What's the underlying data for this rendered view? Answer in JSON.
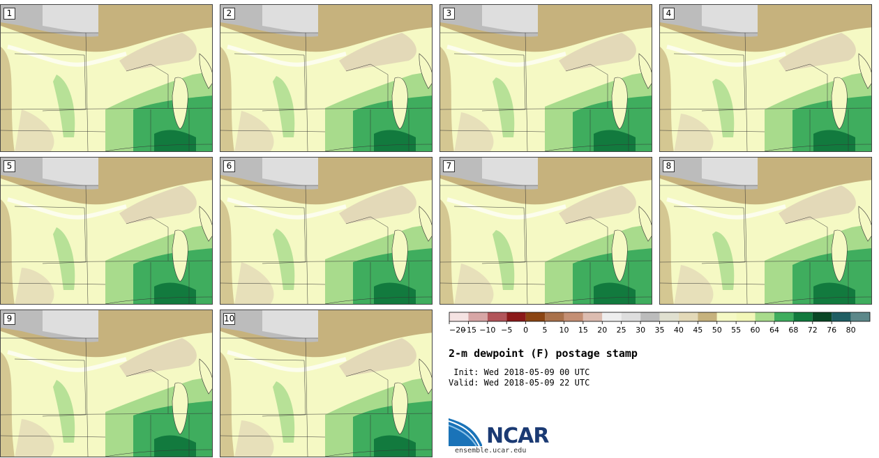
{
  "panels": [
    {
      "label": "1"
    },
    {
      "label": "2"
    },
    {
      "label": "3"
    },
    {
      "label": "4"
    },
    {
      "label": "5"
    },
    {
      "label": "6"
    },
    {
      "label": "7"
    },
    {
      "label": "8"
    },
    {
      "label": "9"
    },
    {
      "label": "10"
    }
  ],
  "legend": {
    "ticks": [
      "-20",
      "-15",
      "-10",
      "-5",
      "0",
      "5",
      "10",
      "15",
      "20",
      "25",
      "30",
      "35",
      "40",
      "45",
      "50",
      "55",
      "60",
      "64",
      "68",
      "72",
      "76",
      "80"
    ],
    "colors": [
      "#f5e3e3",
      "#d7a6a6",
      "#b2555a",
      "#8b1a1a",
      "#8b4513",
      "#a9714b",
      "#c48f74",
      "#dcbcb0",
      "#eeeeee",
      "#dedede",
      "#bcbcbc",
      "#e0e0d0",
      "#e3d9b8",
      "#c6b27d",
      "#f5f9c4",
      "#f2f7b8",
      "#a8db8c",
      "#3fad5e",
      "#127a3e",
      "#0a4726",
      "#1f5e63",
      "#5c888a"
    ]
  },
  "title": "2-m dewpoint (F) postage stamp",
  "init": " Init: Wed 2018-05-09 00 UTC",
  "valid": "Valid: Wed 2018-05-09 22 UTC",
  "logo": {
    "name": "NCAR",
    "url": "ensemble.ucar.edu"
  }
}
